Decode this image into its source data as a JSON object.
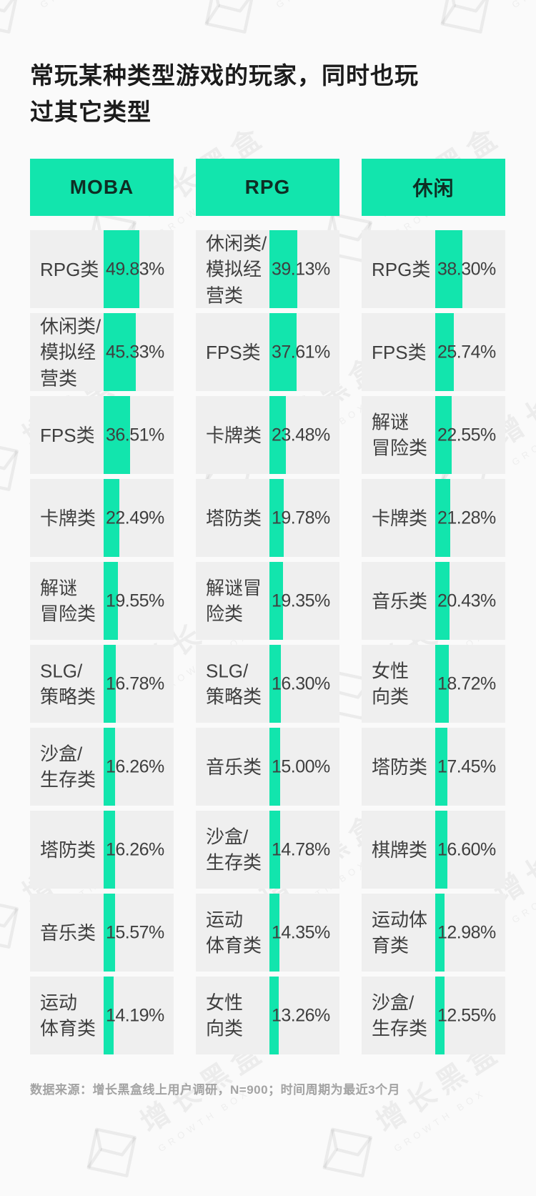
{
  "watermark": {
    "text_cn": "增长黑盒",
    "text_en": "GROWTH BOX"
  },
  "colors": {
    "accent_green": "#12E5AD",
    "row_background": "#EFEFEF",
    "page_background": "#FAFAFA",
    "title_color": "#1B1B1B",
    "text_color": "#3F3F3F",
    "footer_color": "#A3A3A3"
  },
  "chart_data": {
    "type": "bar",
    "title": "常玩某种类型游戏的玩家，同时也玩\n过其它类型",
    "unit": "%",
    "layout_hint": "three vertical lists; each row shows a category label and a vertical green bar whose width is proportional to the percentage (1px per %)",
    "source_note": "数据来源：增长黑盒线上用户调研，N=900；时间周期为最近3个月",
    "groups": [
      {
        "header": "MOBA",
        "rows": [
          {
            "label": "RPG类",
            "value": 49.83
          },
          {
            "label": "休闲类/\n模拟经\n营类",
            "value": 45.33
          },
          {
            "label": "FPS类",
            "value": 36.51
          },
          {
            "label": "卡牌类",
            "value": 22.49
          },
          {
            "label": "解谜\n冒险类",
            "value": 19.55
          },
          {
            "label": "SLG/\n策略类",
            "value": 16.78
          },
          {
            "label": "沙盒/\n生存类",
            "value": 16.26
          },
          {
            "label": "塔防类",
            "value": 16.26
          },
          {
            "label": "音乐类",
            "value": 15.57
          },
          {
            "label": "运动\n体育类",
            "value": 14.19
          }
        ]
      },
      {
        "header": "RPG",
        "rows": [
          {
            "label": "休闲类/\n模拟经\n营类",
            "value": 39.13
          },
          {
            "label": "FPS类",
            "value": 37.61
          },
          {
            "label": "卡牌类",
            "value": 23.48
          },
          {
            "label": "塔防类",
            "value": 19.78
          },
          {
            "label": "解谜冒\n险类",
            "value": 19.35
          },
          {
            "label": "SLG/\n策略类",
            "value": 16.3
          },
          {
            "label": "音乐类",
            "value": 15.0
          },
          {
            "label": "沙盒/\n生存类",
            "value": 14.78
          },
          {
            "label": "运动\n体育类",
            "value": 14.35
          },
          {
            "label": "女性\n向类",
            "value": 13.26
          }
        ]
      },
      {
        "header": "休闲",
        "rows": [
          {
            "label": "RPG类",
            "value": 38.3
          },
          {
            "label": "FPS类",
            "value": 25.74
          },
          {
            "label": "解谜\n冒险类",
            "value": 22.55
          },
          {
            "label": "卡牌类",
            "value": 21.28
          },
          {
            "label": "音乐类",
            "value": 20.43
          },
          {
            "label": "女性\n向类",
            "value": 18.72
          },
          {
            "label": "塔防类",
            "value": 17.45
          },
          {
            "label": "棋牌类",
            "value": 16.6
          },
          {
            "label": "运动体\n育类",
            "value": 12.98
          },
          {
            "label": "沙盒/\n生存类",
            "value": 12.55
          }
        ]
      }
    ]
  }
}
